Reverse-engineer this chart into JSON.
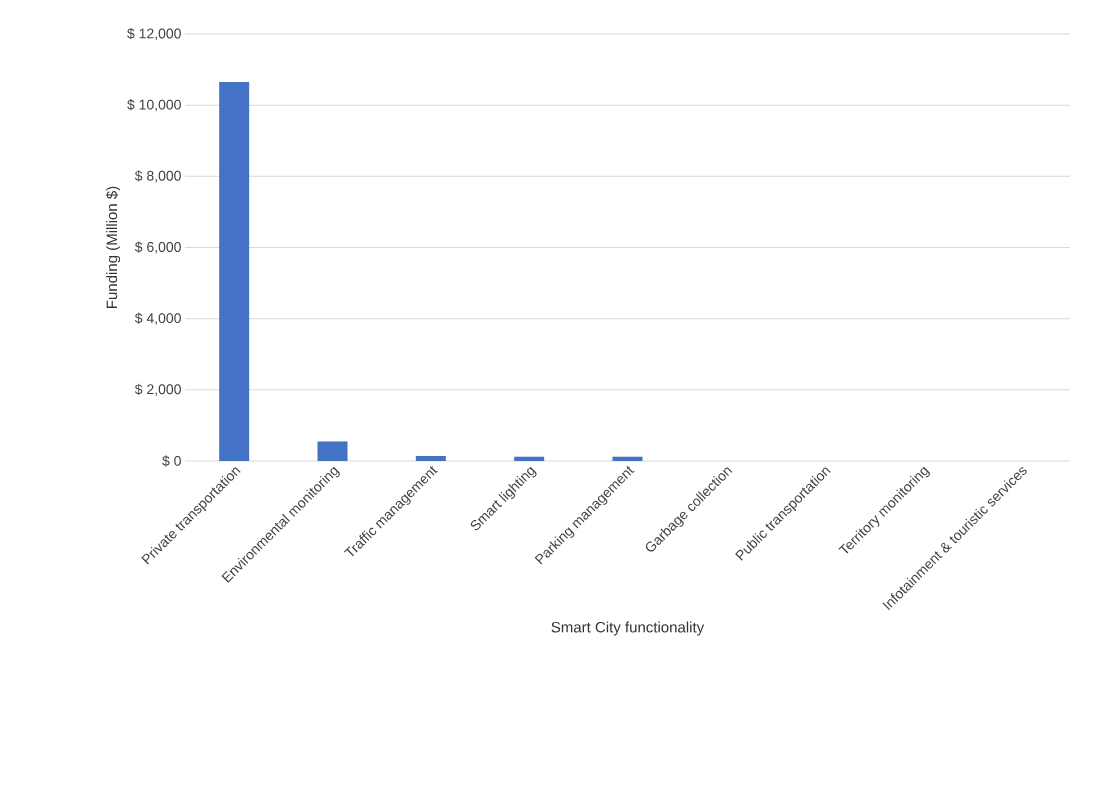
{
  "chart_data": {
    "type": "bar",
    "xlabel": "Smart City functionality",
    "ylabel": "Funding (Million $)",
    "categories": [
      "Private transportation",
      "Environmental monitoring",
      "Traffic management",
      "Smart lighting",
      "Parking management",
      "Garbage collection",
      "Public transportation",
      "Territory monitoring",
      "Infotainment & touristic services"
    ],
    "values": [
      10650,
      550,
      140,
      120,
      120,
      0,
      0,
      0,
      0
    ],
    "color": "#4472c4",
    "ylim": [
      0,
      12000
    ],
    "yticks": [
      {
        "value": 0,
        "label": "$ 0"
      },
      {
        "value": 2000,
        "label": "$ 2,000"
      },
      {
        "value": 4000,
        "label": "$ 4,000"
      },
      {
        "value": 6000,
        "label": "$ 6,000"
      },
      {
        "value": 8000,
        "label": "$ 8,000"
      },
      {
        "value": 10000,
        "label": "$ 10,000"
      },
      {
        "value": 12000,
        "label": "$ 12,000"
      }
    ],
    "grid": "y"
  }
}
